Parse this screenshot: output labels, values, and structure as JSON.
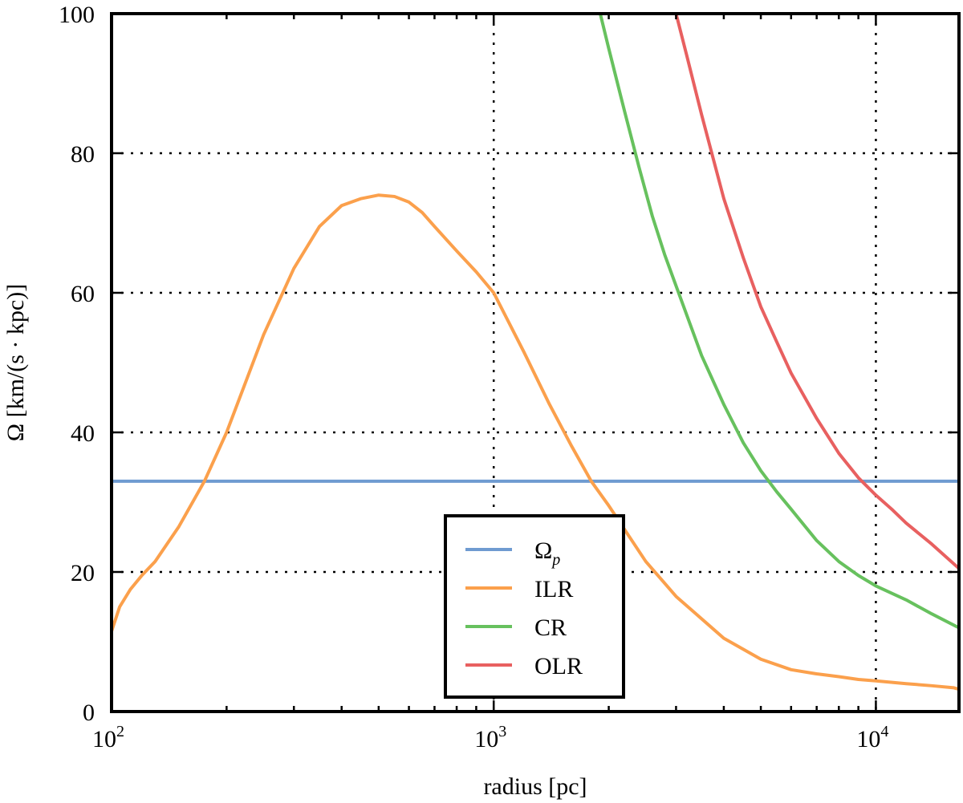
{
  "chart_data": {
    "type": "line",
    "title": "",
    "xlabel": "radius [pc]",
    "ylabel": "Ω [km/(s · kpc)]",
    "xscale": "log",
    "xlim": [
      100,
      16500
    ],
    "ylim": [
      0,
      100
    ],
    "grid": true,
    "legend_position": "lower-center",
    "x_ticks": [
      {
        "value": 100,
        "base": "10",
        "exp": "2"
      },
      {
        "value": 1000,
        "base": "10",
        "exp": "3"
      },
      {
        "value": 10000,
        "base": "10",
        "exp": "4"
      }
    ],
    "y_ticks": [
      {
        "value": 0,
        "label": "0"
      },
      {
        "value": 20,
        "label": "20"
      },
      {
        "value": 40,
        "label": "40"
      },
      {
        "value": 60,
        "label": "60"
      },
      {
        "value": 80,
        "label": "80"
      },
      {
        "value": 100,
        "label": "100"
      }
    ],
    "series": [
      {
        "name": "Ω_p",
        "label_main": "Ω",
        "label_sub": "p",
        "color": "#6f9bd1",
        "x": [
          100,
          16500
        ],
        "y": [
          33,
          33
        ]
      },
      {
        "name": "ILR",
        "label_main": "ILR",
        "label_sub": "",
        "color": "#fba04c",
        "x": [
          100,
          105,
          112,
          120,
          130,
          150,
          175,
          200,
          250,
          300,
          350,
          400,
          450,
          500,
          550,
          600,
          650,
          700,
          800,
          900,
          1000,
          1200,
          1400,
          1600,
          1800,
          2000,
          2500,
          3000,
          4000,
          5000,
          6000,
          7000,
          8000,
          9000,
          10000,
          12000,
          14000,
          16000,
          16500
        ],
        "y": [
          11.5,
          15,
          17.5,
          19.5,
          21.5,
          26.5,
          33,
          40,
          54,
          63.5,
          69.5,
          72.5,
          73.5,
          74,
          73.8,
          73,
          71.5,
          69.5,
          66,
          63,
          60,
          51.5,
          44,
          38,
          33,
          29.5,
          21.5,
          16.5,
          10.5,
          7.5,
          6,
          5.4,
          5,
          4.6,
          4.4,
          4,
          3.7,
          3.4,
          3.2
        ]
      },
      {
        "name": "CR",
        "label_main": "CR",
        "label_sub": "",
        "color": "#67c15e",
        "x": [
          1900,
          2000,
          2200,
          2400,
          2600,
          2800,
          3000,
          3500,
          4000,
          4500,
          5000,
          5500,
          6000,
          7000,
          8000,
          9000,
          10000,
          12000,
          14000,
          16500
        ],
        "y": [
          100,
          95,
          86,
          78,
          71,
          65.5,
          61,
          51,
          44,
          38.5,
          34.5,
          31.5,
          29,
          24.5,
          21.5,
          19.5,
          18,
          16,
          14,
          12
        ]
      },
      {
        "name": "OLR",
        "label_main": "OLR",
        "label_sub": "",
        "color": "#e86060",
        "x": [
          3000,
          3200,
          3500,
          4000,
          4500,
          5000,
          5500,
          6000,
          7000,
          8000,
          9000,
          10000,
          11000,
          12000,
          14000,
          16500
        ],
        "y": [
          100,
          94,
          85.5,
          73.5,
          65,
          58,
          53,
          48.5,
          42,
          37,
          33.5,
          31,
          29,
          27,
          24,
          20.5
        ]
      }
    ]
  }
}
